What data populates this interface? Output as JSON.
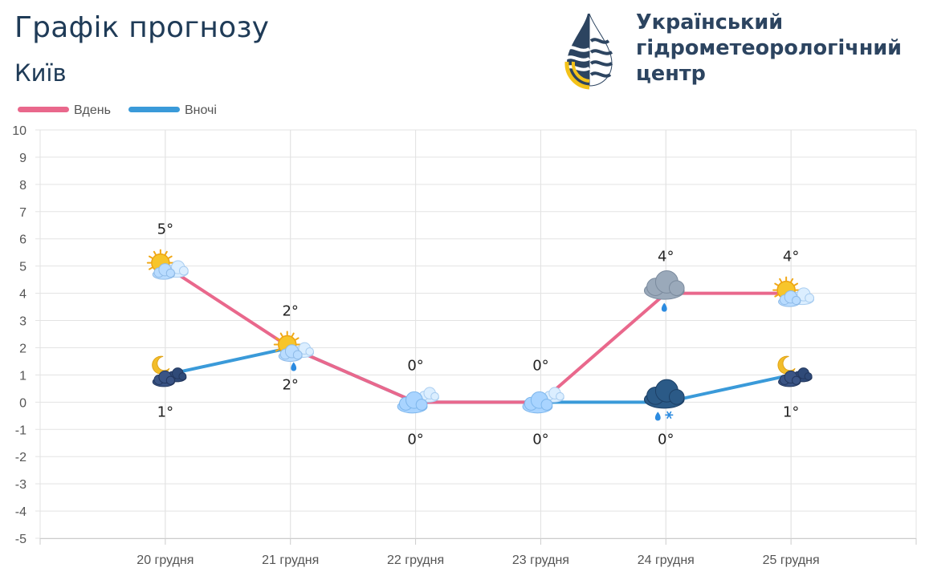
{
  "page": {
    "title": "Графік прогнозу",
    "city": "Київ"
  },
  "logo": {
    "line1": "Український",
    "line2": "гідрометеорологічний",
    "line3": "центр",
    "icon": "water-drop-logo-icon"
  },
  "colors": {
    "day": "#e9688c",
    "night": "#3a9ad9",
    "grid": "#e3e3e3",
    "axis_text": "#555555",
    "title": "#1f3b57"
  },
  "chart_data": {
    "type": "line",
    "categories": [
      "20 грудня",
      "21 грудня",
      "22 грудня",
      "23 грудня",
      "24 грудня",
      "25 грудня"
    ],
    "series": [
      {
        "name": "Вдень",
        "values": [
          5,
          2,
          0,
          0,
          4,
          4
        ],
        "labels": [
          "5°",
          "2°",
          "0°",
          "0°",
          "4°",
          "4°"
        ],
        "icons": [
          "sun-cloud-icon",
          "sun-cloud-rain-icon",
          "cloud-icon",
          "cloud-icon",
          "cloud-rain-icon",
          "sun-cloud-icon"
        ]
      },
      {
        "name": "Вночі",
        "values": [
          1,
          2,
          0,
          0,
          0,
          1
        ],
        "labels": [
          "1°",
          "2°",
          "0°",
          "0°",
          "0°",
          "1°"
        ],
        "icons": [
          "moon-cloud-icon",
          "none",
          "none",
          "none",
          "dark-cloud-rain-snow-icon",
          "moon-cloud-icon"
        ]
      }
    ],
    "ylim": [
      -5,
      10
    ],
    "yticks": [
      "10",
      "9",
      "8",
      "7",
      "6",
      "5",
      "4",
      "3",
      "2",
      "1",
      "0",
      "-1",
      "-2",
      "-3",
      "-4",
      "-5"
    ],
    "grid": true,
    "legend_position": "top-left"
  }
}
